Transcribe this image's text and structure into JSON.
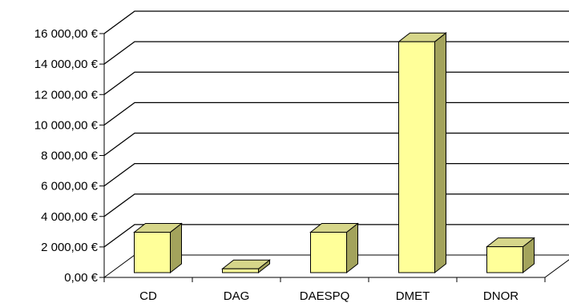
{
  "chart_data": {
    "type": "bar",
    "categories": [
      "CD",
      "DAG",
      "DAESPQ",
      "DMET",
      "DNOR"
    ],
    "values": [
      2650,
      250,
      2650,
      15150,
      1700
    ],
    "ylim": [
      0,
      16000
    ],
    "yticks": [
      0,
      2000,
      4000,
      6000,
      8000,
      10000,
      12000,
      14000,
      16000
    ],
    "ytick_labels": [
      "0,00 €",
      "2 000,00 €",
      "4 000,00 €",
      "6 000,00 €",
      "8 000,00 €",
      "10 000,00 €",
      "12 000,00 €",
      "14 000,00 €",
      "16 000,00 €"
    ],
    "grid": true,
    "legend": false,
    "style": "3d-column"
  },
  "colors": {
    "bar_front": "#ffff99",
    "bar_top": "#d6d68a",
    "bar_side": "#a3a35c",
    "bar_stroke": "#000000",
    "gridline": "#000000",
    "wall": "#808080"
  }
}
